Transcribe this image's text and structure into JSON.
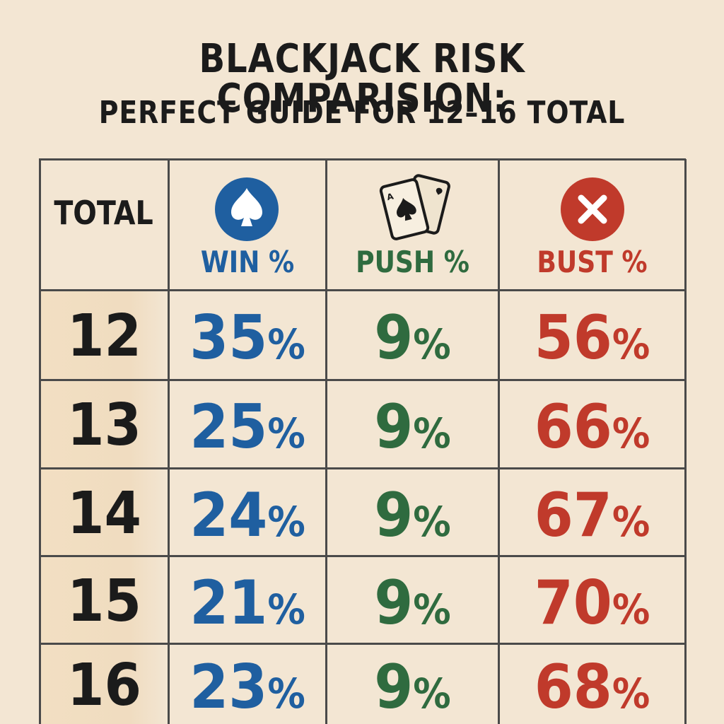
{
  "header": {
    "title": "BLACKJACK RISK COMPARISION:",
    "subtitle": "PERFECT GUIDE FOR 12–16 TOTAL"
  },
  "colors": {
    "background": "#f3e6d3",
    "win": "#1f5fa0",
    "push": "#2f6b3f",
    "bust": "#c03a2b",
    "text": "#1b1b1b"
  },
  "icons": {
    "win": "spade-circle-icon",
    "push": "playing-cards-icon",
    "bust": "x-circle-icon"
  },
  "chart_data": {
    "type": "table",
    "title": "BLACKJACK RISK COMPARISION:",
    "subtitle": "PERFECT GUIDE FOR 12–16 TOTAL",
    "columns": [
      "TOTAL",
      "WIN %",
      "PUSH %",
      "BUST %"
    ],
    "rows": [
      {
        "total": "12",
        "win": 35,
        "push": 9,
        "bust": 56
      },
      {
        "total": "13",
        "win": 25,
        "push": 9,
        "bust": 66
      },
      {
        "total": "14",
        "win": 24,
        "push": 9,
        "bust": 67
      },
      {
        "total": "15",
        "win": 21,
        "push": 9,
        "bust": 70
      },
      {
        "total": "16",
        "win": 23,
        "push": 9,
        "bust": 68
      }
    ],
    "unit": "%"
  }
}
